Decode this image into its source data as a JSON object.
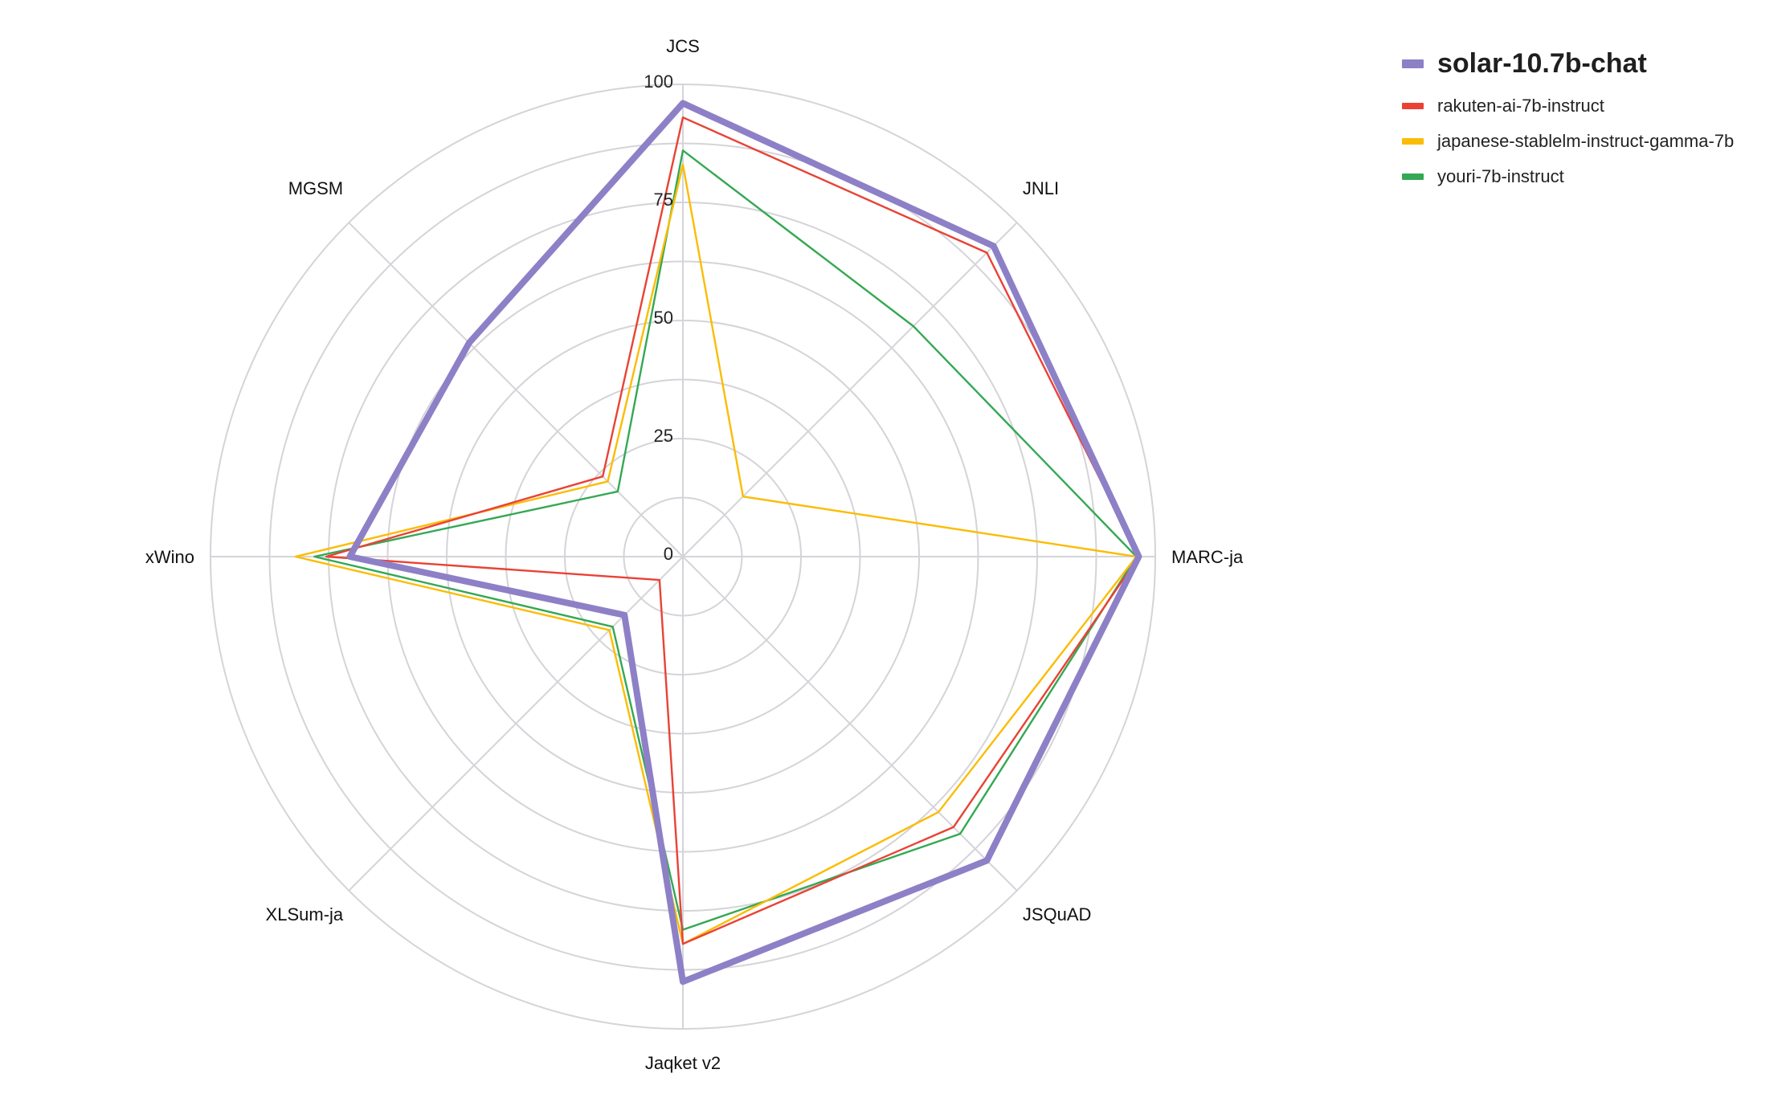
{
  "chart_data": {
    "type": "radar",
    "axes": [
      "JCS",
      "JNLI",
      "MARC-ja",
      "JSQuAD",
      "Jaqket v2",
      "XLSum-ja",
      "xWino",
      "MGSM"
    ],
    "radial_ticks": [
      0,
      25,
      50,
      75,
      100
    ],
    "range": [
      0,
      100
    ],
    "grid": true,
    "legend_position": "top-right",
    "series": [
      {
        "name": "solar-10.7b-chat",
        "color": "#8e80c6",
        "highlight": true,
        "values": [
          96,
          93,
          96.5,
          91,
          90,
          17.5,
          70.5,
          64
        ]
      },
      {
        "name": "rakuten-ai-7b-instruct",
        "color": "#e94235",
        "highlight": false,
        "values": [
          93,
          91,
          96.5,
          81,
          82,
          7,
          75.5,
          24
        ]
      },
      {
        "name": "japanese-stablelm-instruct-gamma-7b",
        "color": "#fbbc04",
        "highlight": false,
        "values": [
          83,
          18,
          96,
          76.5,
          82,
          22,
          82,
          22.5
        ]
      },
      {
        "name": "youri-7b-instruct",
        "color": "#34a853",
        "highlight": false,
        "values": [
          86,
          69,
          96,
          83,
          79,
          21,
          78,
          19.5
        ]
      }
    ]
  }
}
